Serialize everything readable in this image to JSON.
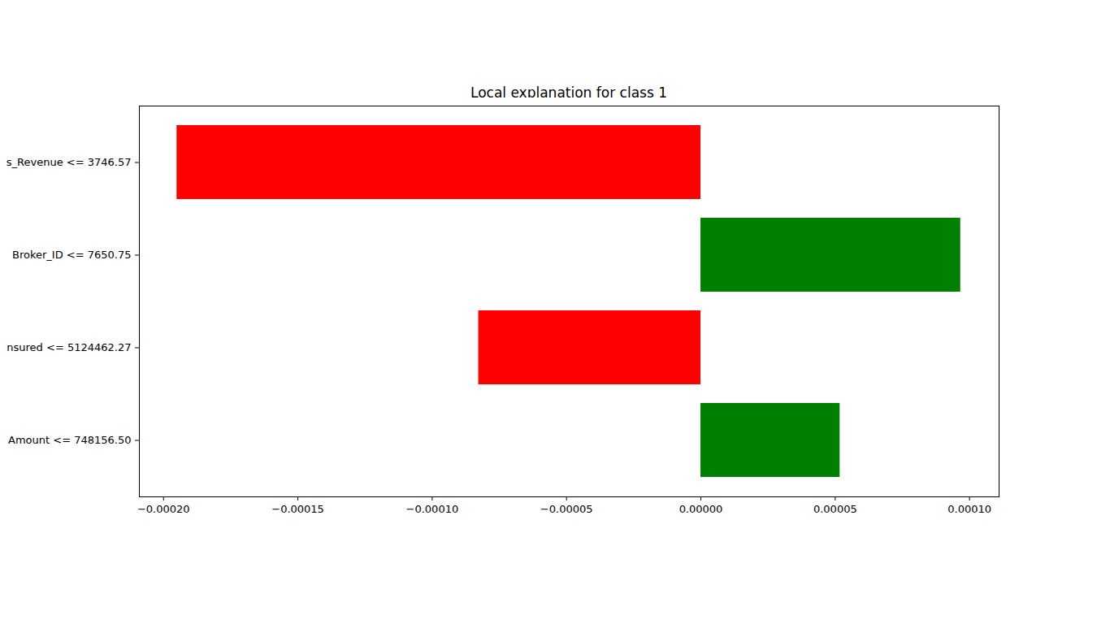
{
  "chart_data": {
    "type": "bar",
    "orientation": "horizontal",
    "title": "Local explanation for class 1",
    "categories": [
      "s_Revenue <= 3746.57",
      "Broker_ID <= 7650.75",
      "nsured <= 5124462.27",
      "Amount <= 748156.50"
    ],
    "values": [
      -0.000195,
      9.67e-05,
      -8.27e-05,
      5.18e-05
    ],
    "colors": [
      "#ff0000",
      "#008000",
      "#ff0000",
      "#008000"
    ],
    "xlim": [
      -0.000209,
      0.000111
    ],
    "xticks": [
      {
        "value": -0.0002,
        "label": "−0.00020"
      },
      {
        "value": -0.00015,
        "label": "−0.00015"
      },
      {
        "value": -0.0001,
        "label": "−0.00010"
      },
      {
        "value": -5e-05,
        "label": "−0.00005"
      },
      {
        "value": 0,
        "label": "0.00000"
      },
      {
        "value": 5e-05,
        "label": "0.00005"
      },
      {
        "value": 0.0001,
        "label": "0.00010"
      }
    ],
    "grid": false
  }
}
